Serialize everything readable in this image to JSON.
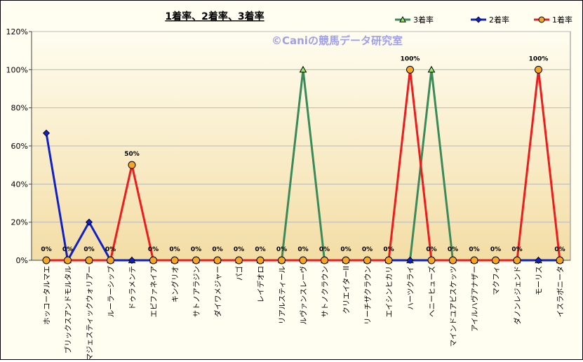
{
  "chart_data": {
    "type": "line",
    "title": "1着率、2着率、3着率",
    "watermark": "©Caniの競馬データ研究室",
    "xlabel": "",
    "ylabel": "",
    "ylim": [
      0,
      120
    ],
    "yticks": [
      "0%",
      "20%",
      "40%",
      "60%",
      "80%",
      "100%",
      "120%"
    ],
    "grid": true,
    "legend_position": "top-right",
    "categories": [
      "ホッコータルマエ",
      "ブリックスアンドモルタル",
      "マジェスティックウォリアー",
      "ルーラーシップ",
      "ドゥラメンテ",
      "エピファネイア",
      "キングリオ",
      "サトノアラジン",
      "ダイワメジャー",
      "パゴ",
      "レイデオロ",
      "リアルスティール",
      "ルヴァンスレーヴ",
      "サトノクラウン",
      "クリエイターII",
      "リーチザクラウン",
      "エイシンヒカリ",
      "ハーツクライ",
      "ヘニーヒューズ",
      "マインドユアビスケッツ",
      "アイルハヴアナザー",
      "マクフィ",
      "ダノンレジェンド",
      "モーリス",
      "イスラボニータ"
    ],
    "series": [
      {
        "name": "3着率",
        "color": "#3a8a5a",
        "marker": "triangle",
        "values": [
          null,
          0,
          0,
          0,
          0,
          0,
          0,
          0,
          0,
          0,
          0,
          0,
          100,
          0,
          0,
          0,
          0,
          0,
          100,
          0,
          0,
          0,
          0,
          0,
          0
        ]
      },
      {
        "name": "2着率",
        "color": "#1020c8",
        "marker": "diamond",
        "values": [
          66.7,
          0,
          20,
          0,
          0,
          0,
          0,
          0,
          0,
          0,
          0,
          0,
          0,
          0,
          0,
          0,
          0,
          0,
          0,
          0,
          0,
          0,
          0,
          0,
          0
        ]
      },
      {
        "name": "1着率",
        "color": "#ee1c1c",
        "marker": "circle",
        "values": [
          0,
          0,
          0,
          0,
          50,
          0,
          0,
          0,
          0,
          0,
          0,
          0,
          0,
          0,
          0,
          0,
          0,
          100,
          0,
          0,
          0,
          0,
          0,
          100,
          0
        ]
      }
    ],
    "data_labels": [
      "0%",
      "0%",
      "0%",
      "0%",
      "50%",
      "0%",
      "0%",
      "0%",
      "0%",
      "0%",
      "0%",
      "0%",
      "0%",
      "0%",
      "0%",
      "0%",
      "0%",
      "100%",
      "0%",
      "0%",
      "0%",
      "0%",
      "0%",
      "100%",
      "0%"
    ]
  }
}
